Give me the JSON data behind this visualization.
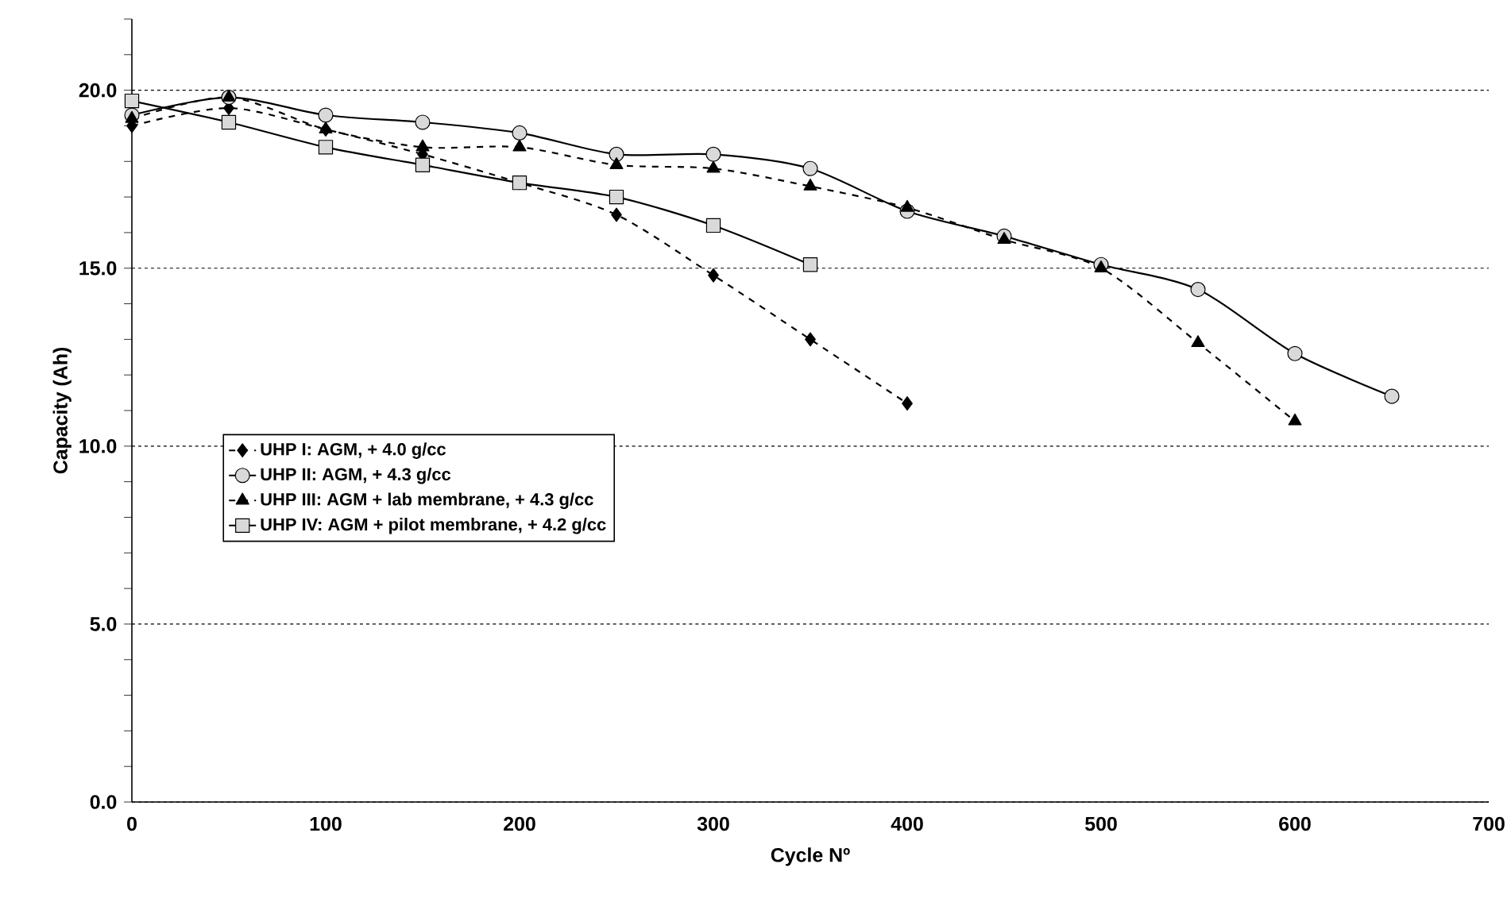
{
  "chart_data": {
    "type": "line",
    "xlabel": "Cycle Nº",
    "ylabel": "Capacity (Ah)",
    "xlim": [
      0,
      700
    ],
    "xticks": [
      0,
      100,
      200,
      300,
      400,
      500,
      600,
      700
    ],
    "ylim": [
      0,
      22
    ],
    "yticks": [
      {
        "value": 0,
        "label": "0.0"
      },
      {
        "value": 1,
        "label": null
      },
      {
        "value": 2,
        "label": null
      },
      {
        "value": 3,
        "label": null
      },
      {
        "value": 4,
        "label": null
      },
      {
        "value": 5,
        "label": "5.0"
      },
      {
        "value": 6,
        "label": null
      },
      {
        "value": 7,
        "label": null
      },
      {
        "value": 8,
        "label": null
      },
      {
        "value": 9,
        "label": null
      },
      {
        "value": 10,
        "label": "10.0"
      },
      {
        "value": 11,
        "label": null
      },
      {
        "value": 12,
        "label": null
      },
      {
        "value": 13,
        "label": null
      },
      {
        "value": 14,
        "label": null
      },
      {
        "value": 15,
        "label": "15.0"
      },
      {
        "value": 16,
        "label": null
      },
      {
        "value": 17,
        "label": null
      },
      {
        "value": 18,
        "label": null
      },
      {
        "value": 19,
        "label": null
      },
      {
        "value": 20,
        "label": "20.0"
      },
      {
        "value": 21,
        "label": null
      },
      {
        "value": 22,
        "label": null
      }
    ],
    "grid": "y",
    "legend": "left",
    "x": [
      0,
      50,
      100,
      150,
      200,
      250,
      300,
      350,
      400,
      450,
      500,
      550,
      600,
      650
    ],
    "series": [
      {
        "name": "UHP I: AGM, + 4.0 g/cc",
        "color": "#000000",
        "marker": "diamond",
        "line_style": "dashed",
        "values": [
          19.0,
          19.5,
          18.9,
          18.2,
          17.4,
          16.5,
          14.8,
          13.0,
          11.2,
          null,
          null,
          null,
          null,
          null
        ]
      },
      {
        "name": "UHP II: AGM, + 4.3 g/cc",
        "color": "#d9d9d9",
        "marker": "circle",
        "line_style": "solid",
        "values": [
          19.3,
          19.8,
          19.3,
          19.1,
          18.8,
          18.2,
          18.2,
          17.8,
          16.6,
          15.9,
          15.1,
          14.4,
          12.6,
          11.4
        ]
      },
      {
        "name": "UHP III: AGM + lab membrane, + 4.3 g/cc",
        "color": "#000000",
        "marker": "triangle",
        "line_style": "dashed",
        "values": [
          19.2,
          19.8,
          18.9,
          18.4,
          18.4,
          17.9,
          17.8,
          17.3,
          16.7,
          15.8,
          15.0,
          12.9,
          10.7,
          null
        ]
      },
      {
        "name": "UHP IV: AGM + pilot membrane, + 4.2 g/cc",
        "color": "#d9d9d9",
        "marker": "square",
        "line_style": "solid",
        "values": [
          19.7,
          19.1,
          18.4,
          17.9,
          17.4,
          17.0,
          16.2,
          15.1,
          null,
          null,
          null,
          null,
          null,
          null
        ]
      }
    ]
  }
}
